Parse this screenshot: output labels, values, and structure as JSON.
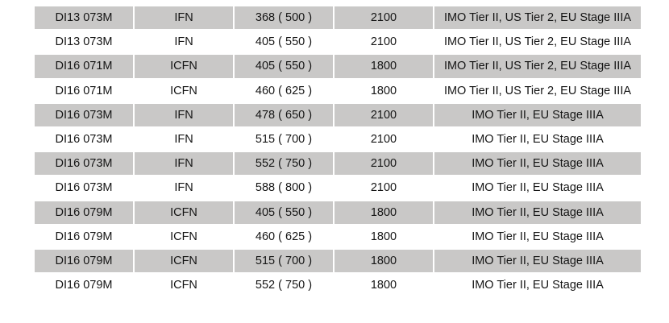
{
  "table": {
    "row_shading": "#c9c8c7",
    "rows": [
      [
        "DI13 073M",
        "IFN",
        "368 ( 500 )",
        "2100",
        "IMO Tier II, US Tier 2, EU Stage IIIA"
      ],
      [
        "DI13 073M",
        "IFN",
        "405 ( 550 )",
        "2100",
        "IMO Tier II, US Tier 2, EU Stage IIIA"
      ],
      [
        "DI16 071M",
        "ICFN",
        "405 ( 550 )",
        "1800",
        "IMO Tier II, US Tier 2, EU Stage IIIA"
      ],
      [
        "DI16 071M",
        "ICFN",
        "460 ( 625 )",
        "1800",
        "IMO Tier II, US Tier 2, EU Stage IIIA"
      ],
      [
        "DI16 073M",
        "IFN",
        "478 ( 650 )",
        "2100",
        "IMO Tier II, EU Stage IIIA"
      ],
      [
        "DI16 073M",
        "IFN",
        "515 ( 700 )",
        "2100",
        "IMO Tier II, EU Stage IIIA"
      ],
      [
        "DI16 073M",
        "IFN",
        "552 ( 750 )",
        "2100",
        "IMO Tier II, EU Stage IIIA"
      ],
      [
        "DI16 073M",
        "IFN",
        "588 ( 800 )",
        "2100",
        "IMO Tier II, EU Stage IIIA"
      ],
      [
        "DI16 079M",
        "ICFN",
        "405 ( 550 )",
        "1800",
        "IMO Tier II, EU Stage IIIA"
      ],
      [
        "DI16 079M",
        "ICFN",
        "460 ( 625 )",
        "1800",
        "IMO Tier II, EU Stage IIIA"
      ],
      [
        "DI16 079M",
        "ICFN",
        "515 ( 700 )",
        "1800",
        "IMO Tier II, EU Stage IIIA"
      ],
      [
        "DI16 079M",
        "ICFN",
        "552 ( 750 )",
        "1800",
        "IMO Tier II, EU Stage IIIA"
      ]
    ]
  }
}
